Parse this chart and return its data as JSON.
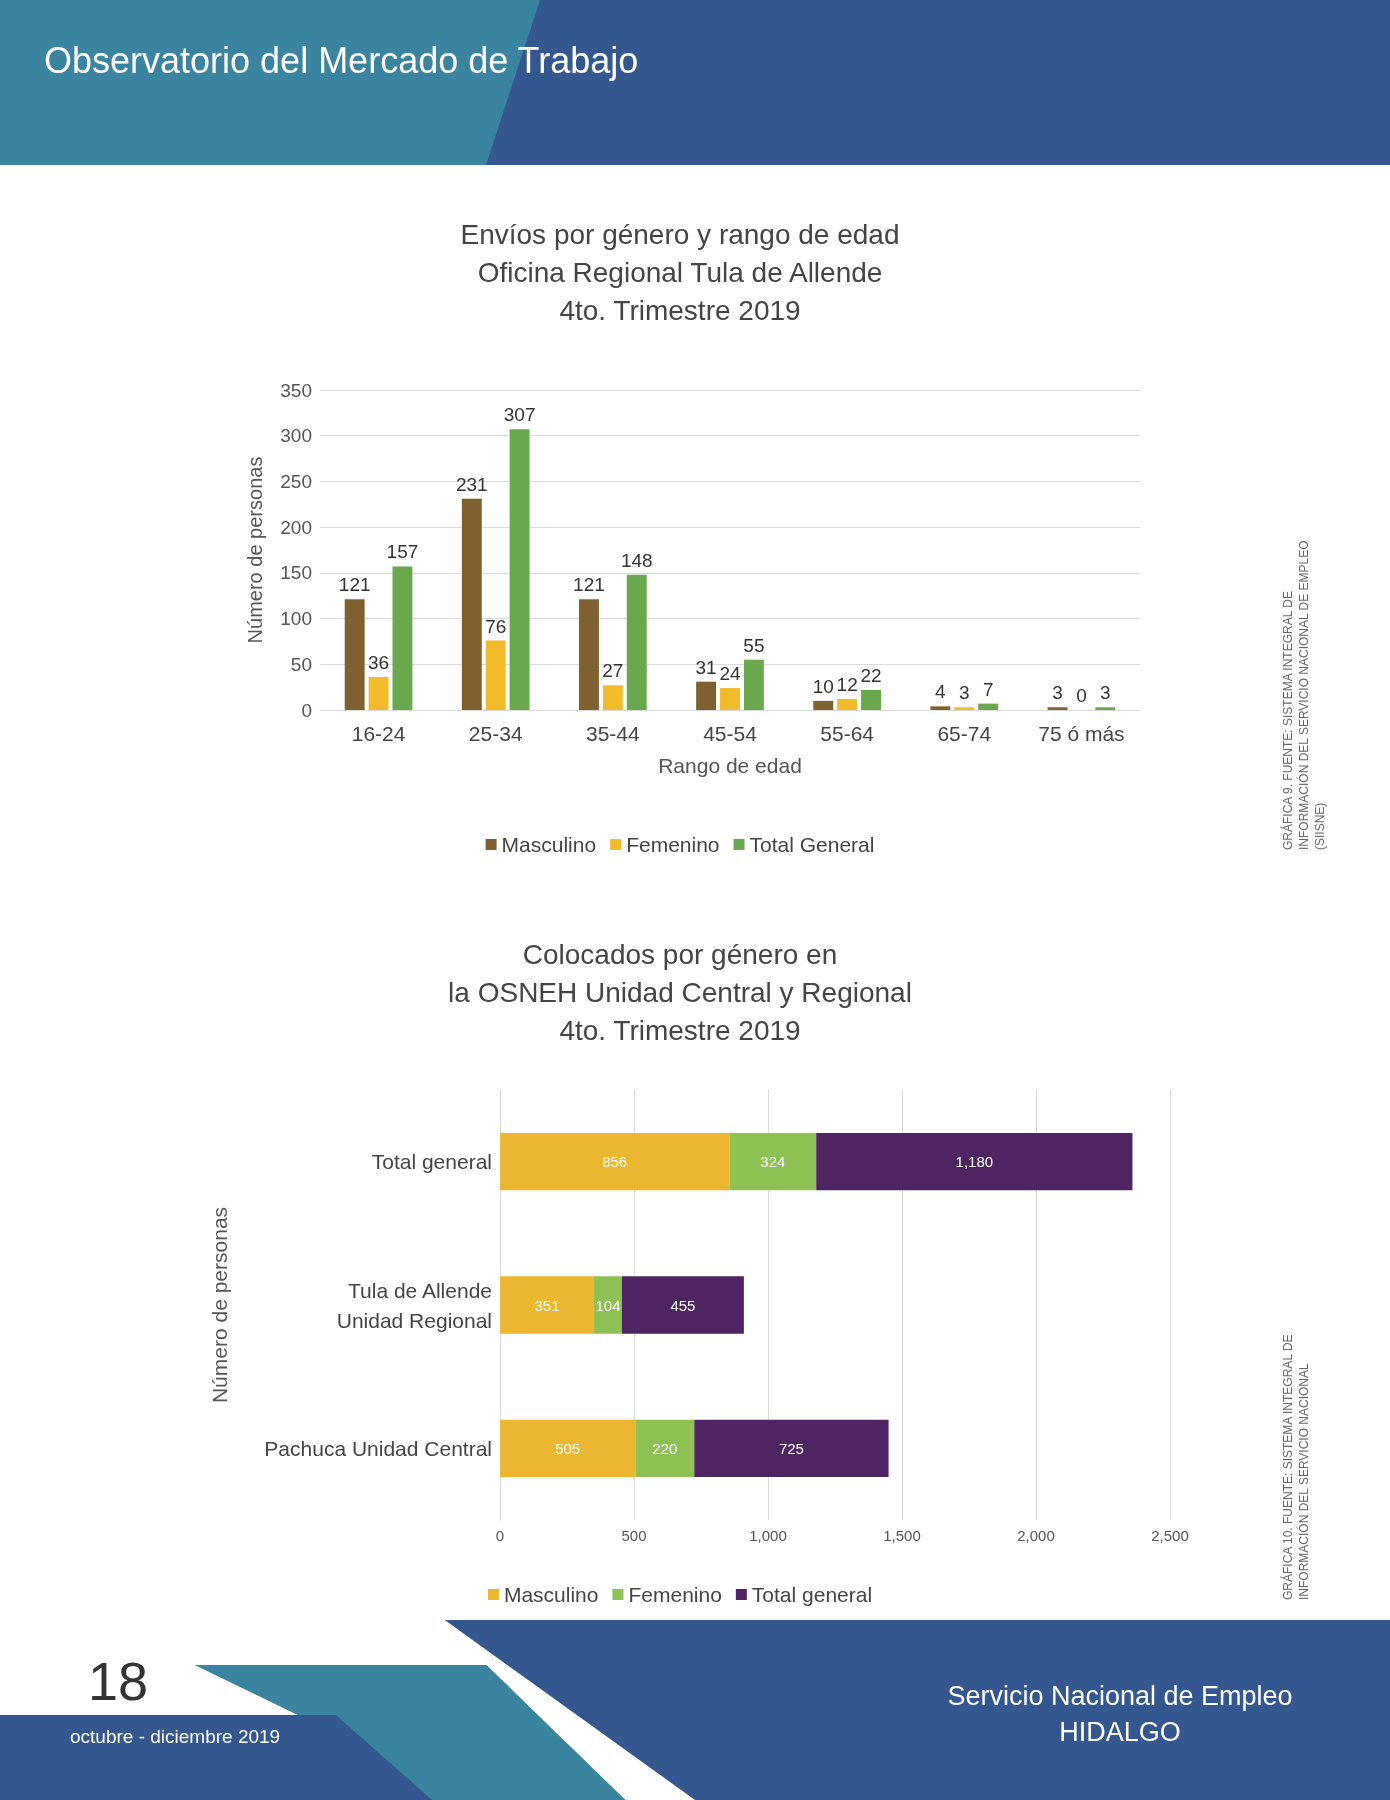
{
  "chart_data": [
    {
      "type": "bar",
      "title": "Envíos por género y rango de edad\nOficina Regional Tula de Allende\n4to. Trimestre 2019",
      "xlabel": "Rango de edad",
      "ylabel": "Número de personas",
      "categories": [
        "16-24",
        "25-34",
        "35-44",
        "45-54",
        "55-64",
        "65-74",
        "75 ó más"
      ],
      "series": [
        {
          "name": "Masculino",
          "color": "#7f6030",
          "values": [
            121,
            231,
            121,
            31,
            10,
            4,
            3
          ]
        },
        {
          "name": "Femenino",
          "color": "#f0bc2c",
          "values": [
            36,
            76,
            27,
            24,
            12,
            3,
            0
          ]
        },
        {
          "name": "Total General",
          "color": "#6aa84f",
          "values": [
            157,
            307,
            148,
            55,
            22,
            7,
            3
          ]
        }
      ],
      "ylim": [
        0,
        350
      ],
      "yticks": [
        0,
        50,
        100,
        150,
        200,
        250,
        300,
        350
      ],
      "grid": "y",
      "data_labels": true,
      "legend": "bottom",
      "annotations": [
        "Observatorio del Mercado de Trabajo",
        "GRÁFICA 9. FUENTE: SISTEMA INTEGRAL DE INFORMACIÓN DEL SERVICIO NACIONAL DE EMPLEO (SIISNE)"
      ]
    },
    {
      "type": "bar",
      "orientation": "horizontal",
      "stacked": true,
      "title": "Colocados por género en\nla OSNEH Unidad Central y Regional\n4to. Trimestre 2019",
      "ylabel": "Número de personas",
      "categories": [
        "Total general",
        "Tula de Allende\nUnidad Regional",
        "Pachuca Unidad Central"
      ],
      "series": [
        {
          "name": "Masculino",
          "color": "#ebb730",
          "values": [
            856,
            351,
            505
          ],
          "value_labels": [
            "856",
            "351",
            "505"
          ]
        },
        {
          "name": "Femenino",
          "color": "#8dc153",
          "values": [
            324,
            104,
            220
          ],
          "value_labels": [
            "324",
            "104",
            "220"
          ]
        },
        {
          "name": "Total general",
          "color": "#4e2462",
          "values": [
            1180,
            455,
            725
          ],
          "value_labels": [
            "1,180",
            "455",
            "725"
          ]
        }
      ],
      "xlim": [
        0,
        2500
      ],
      "xticks": [
        0,
        500,
        {
          "value": 1000,
          "label": "1,000"
        },
        {
          "value": 1500,
          "label": "1,500"
        },
        {
          "value": 2000,
          "label": "2,000"
        },
        {
          "value": 2500,
          "label": "2,500"
        }
      ],
      "grid": "x",
      "legend": "bottom",
      "annotations": [
        "GRÁFICA 10. FUENTE: SISTEMA INTEGRAL DE INFORMACIÓN DEL SERVICIO NACIONAL",
        "18",
        "octubre - diciembre 2019",
        "Servicio Nacional de Empleo",
        "HIDALGO"
      ]
    }
  ]
}
